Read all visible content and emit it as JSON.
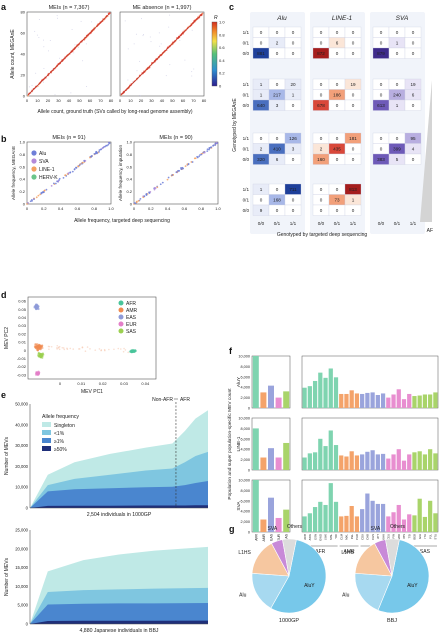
{
  "panel_letters": [
    "a",
    "b",
    "c",
    "d",
    "e",
    "f",
    "g"
  ],
  "chart_data": [
    {
      "panel": "a",
      "type": "scatter",
      "subplots": [
        {
          "title": "MEIs (n = 7,367)",
          "xlim": [
            0,
            80
          ],
          "ylim": [
            0,
            80
          ],
          "xticks": [
            0,
            10,
            20,
            30,
            40,
            50,
            60,
            70,
            80
          ],
          "yticks": [
            0,
            20,
            40,
            60,
            80
          ],
          "trend": [
            [
              1,
              1
            ],
            [
              78,
              78
            ]
          ]
        },
        {
          "title": "ME absence (n = 1,997)",
          "xlim": [
            0,
            80
          ],
          "ylim": [
            0,
            80
          ],
          "xticks": [
            0,
            10,
            20,
            30,
            40,
            50,
            60,
            70,
            80
          ],
          "yticks": [
            0,
            20,
            40,
            60,
            80
          ],
          "trend": [
            [
              1,
              1
            ],
            [
              78,
              78
            ]
          ]
        }
      ],
      "ylabel": "Allele count, MEGAnE",
      "xlabel": "Allele count, ground truth (SVs called by long-read genome assembly)",
      "colorbar": {
        "title": "R",
        "ticks": [
          "1.0",
          "0.8",
          "0.6",
          "0.4",
          "0.2",
          "0"
        ]
      }
    },
    {
      "panel": "b",
      "type": "scatter",
      "subplots": [
        {
          "title": "MEIs (n = 91)",
          "ylabel": "Allele frequency, MEGAnE",
          "xlim": [
            0,
            1
          ],
          "ylim": [
            0,
            1
          ],
          "xticks": [
            "0",
            "0.2",
            "0.4",
            "0.6",
            "0.8",
            "1.0"
          ],
          "yticks": [
            "0",
            "0.2",
            "0.4",
            "0.6",
            "0.8",
            "1.0"
          ]
        },
        {
          "title": "MEIs (n = 90)",
          "ylabel": "Allele frequency, imputation",
          "xlim": [
            0,
            1
          ],
          "ylim": [
            0,
            1
          ],
          "xticks": [
            "0",
            "0.2",
            "0.4",
            "0.6",
            "0.8",
            "1.0"
          ],
          "yticks": [
            "0",
            "0.2",
            "0.4",
            "0.6",
            "0.8",
            "1.0"
          ]
        }
      ],
      "xlabel": "Allele frequency, targeted deep sequencing",
      "legend": [
        {
          "name": "Alu",
          "color": "#6f7fd8"
        },
        {
          "name": "SVA",
          "color": "#b48ad8"
        },
        {
          "name": "LINE-1",
          "color": "#f4a261"
        },
        {
          "name": "HERV-K",
          "color": "#6cc58a"
        }
      ]
    },
    {
      "panel": "c",
      "type": "heatmap",
      "columns": [
        "Alu",
        "LINE-1",
        "SVA"
      ],
      "row_labels": [
        "1/1",
        "0/1",
        "0/0"
      ],
      "col_labels": [
        "0/0",
        "0/1",
        "1/1"
      ],
      "ylabel": "Genotyped by MEGAnE",
      "xlabel": "Genotyped by targeted deep sequencing",
      "side_label": "AF",
      "blocks": [
        [
          [
            [
              0,
              0,
              0
            ],
            [
              0,
              2,
              0
            ],
            [
              881,
              0,
              0
            ]
          ],
          [
            [
              0,
              0,
              0
            ],
            [
              0,
              6,
              0
            ],
            [
              872,
              0,
              0
            ]
          ],
          [
            [
              0,
              0,
              0
            ],
            [
              0,
              1,
              0
            ],
            [
              879,
              0,
              0
            ]
          ]
        ],
        [
          [
            [
              1,
              0,
              20
            ],
            [
              1,
              217,
              1
            ],
            [
              640,
              3,
              0
            ]
          ],
          [
            [
              0,
              0,
              19
            ],
            [
              0,
              186,
              0
            ],
            [
              678,
              0,
              0
            ]
          ],
          [
            [
              0,
              0,
              19
            ],
            [
              0,
              240,
              6
            ],
            [
              613,
              1,
              0
            ]
          ]
        ],
        [
          [
            [
              0,
              0,
              126
            ],
            [
              2,
              410,
              3
            ],
            [
              320,
              6,
              0
            ]
          ],
          [
            [
              0,
              0,
              181
            ],
            [
              2,
              435,
              0
            ],
            [
              160,
              0,
              0
            ]
          ],
          [
            [
              0,
              0,
              95
            ],
            [
              0,
              399,
              4
            ],
            [
              383,
              5,
              0
            ]
          ]
        ],
        [
          [
            [
              1,
              0,
              711
            ],
            [
              0,
              168,
              0
            ],
            [
              9,
              0,
              0
            ]
          ],
          [
            [
              0,
              0,
              813
            ],
            [
              0,
              73,
              1
            ],
            [
              0,
              0,
              0
            ]
          ],
          null
        ]
      ]
    },
    {
      "panel": "d",
      "type": "scatter",
      "xlabel": "MEV PC1",
      "ylabel": "MEV PC2",
      "xlim": [
        -0.015,
        0.045
      ],
      "ylim": [
        -0.035,
        0.065
      ],
      "xticks": [
        "0",
        "0.01",
        "0.02",
        "0.03",
        "0.04"
      ],
      "yticks": [
        "0.06",
        "0.05",
        "0.04",
        "0.03",
        "0.02",
        "0.01",
        "0",
        "-0.01",
        "-0.02",
        "-0.03"
      ],
      "legend": [
        {
          "name": "AFR",
          "color": "#48c49a"
        },
        {
          "name": "AMR",
          "color": "#f08a50"
        },
        {
          "name": "EAS",
          "color": "#8e9ad8"
        },
        {
          "name": "EUR",
          "color": "#e37fc8"
        },
        {
          "name": "SAS",
          "color": "#9bd050"
        }
      ],
      "clusters": [
        {
          "name": "EAS",
          "cx": -0.011,
          "cy": 0.053,
          "sx": 0.0012,
          "sy": 0.004
        },
        {
          "name": "EUR",
          "cx": -0.0105,
          "cy": -0.028,
          "sx": 0.0012,
          "sy": 0.003
        },
        {
          "name": "SAS",
          "cx": -0.009,
          "cy": -0.006,
          "sx": 0.0015,
          "sy": 0.004
        },
        {
          "name": "AMR",
          "cx": -0.01,
          "cy": 0.004,
          "sx": 0.0025,
          "sy": 0.006
        },
        {
          "name": "AFR",
          "cx": 0.034,
          "cy": -0.001,
          "sx": 0.002,
          "sy": 0.0018
        }
      ]
    },
    {
      "panel": "e",
      "type": "area",
      "subplots": [
        {
          "caption": "2,504 individuals in 1000GP",
          "ylim": [
            0,
            50000
          ],
          "yticks": [
            "0",
            "10,000",
            "20,000",
            "30,000",
            "40,000",
            "50,000"
          ],
          "nonafr_label": "Non-AFR",
          "afr_label": "AFR",
          "series": [
            {
              "name": "Singleton",
              "color": "#bfe9e6",
              "x": [
                0,
                0.1,
                0.25,
                0.45,
                0.65,
                0.8,
                0.87,
                0.93,
                1.0
              ],
              "y": [
                0,
                16000,
                22000,
                26000,
                29000,
                31000,
                37000,
                43000,
                47000
              ]
            },
            {
              "name": "<1%",
              "color": "#7fc6e0",
              "x": [
                0,
                0.1,
                0.25,
                0.45,
                0.65,
                0.8,
                0.87,
                0.93,
                1.0
              ],
              "y": [
                0,
                11000,
                14000,
                16000,
                18000,
                19000,
                22000,
                25000,
                27000
              ]
            },
            {
              "name": "≥1%",
              "color": "#4a86cf",
              "x": [
                0,
                0.1,
                0.25,
                0.45,
                0.65,
                0.8,
                0.87,
                0.93,
                1.0
              ],
              "y": [
                0,
                8000,
                9000,
                9500,
                10000,
                10200,
                11000,
                12000,
                13000
              ]
            },
            {
              "name": "≥50%",
              "color": "#1f2f7a",
              "x": [
                0,
                0.1,
                0.25,
                0.45,
                0.65,
                0.8,
                0.87,
                0.93,
                1.0
              ],
              "y": [
                0,
                1000,
                1100,
                1100,
                1200,
                1200,
                1200,
                1300,
                1300
              ]
            }
          ]
        },
        {
          "caption": "4,880 Japanese individuals in BBJ",
          "ylim": [
            0,
            25000
          ],
          "yticks": [
            "0",
            "5,000",
            "10,000",
            "15,000",
            "20,000",
            "25,000"
          ],
          "series": [
            {
              "name": "Singleton",
              "color": "#bfe9e6",
              "x": [
                0,
                0.1,
                0.3,
                0.5,
                0.7,
                1.0
              ],
              "y": [
                0,
                14000,
                17000,
                18500,
                19500,
                20500
              ]
            },
            {
              "name": "<1%",
              "color": "#7fc6e0",
              "x": [
                0,
                0.1,
                0.3,
                0.5,
                0.7,
                1.0
              ],
              "y": [
                0,
                8500,
                9000,
                9200,
                9400,
                9600
              ]
            },
            {
              "name": "≥1%",
              "color": "#4a86cf",
              "x": [
                0,
                0.1,
                0.3,
                0.5,
                0.7,
                1.0
              ],
              "y": [
                0,
                5200,
                5400,
                5500,
                5500,
                5600
              ]
            },
            {
              "name": "≥50%",
              "color": "#1f2f7a",
              "x": [
                0,
                0.1,
                0.3,
                0.5,
                0.7,
                1.0
              ],
              "y": [
                0,
                800,
                850,
                850,
                850,
                900
              ]
            }
          ]
        }
      ],
      "ylabel": "Number of MEVs",
      "legend_title": "Allele frequency",
      "legend": [
        {
          "name": "Singleton",
          "color": "#bfe9e6"
        },
        {
          "name": "<1%",
          "color": "#7fc6e0"
        },
        {
          "name": "≥1%",
          "color": "#4a86cf"
        },
        {
          "name": "≥50%",
          "color": "#1f2f7a"
        }
      ]
    },
    {
      "panel": "f",
      "type": "bar",
      "ylabel": "Population and super population-specific MEV count",
      "ylim": [
        0,
        10000
      ],
      "yticks": [
        "0",
        "2,000",
        "4,000",
        "6,000",
        "8,000",
        "10,000"
      ],
      "row_names": [
        "AluY",
        "LINE-1",
        "SVA"
      ],
      "super_categories": [
        "AFR",
        "AMR",
        "EAS",
        "EUR",
        "SAS"
      ],
      "super_colors": [
        "#7fd4b0",
        "#f4a36a",
        "#9aa4dc",
        "#e88ed0",
        "#a9d46a"
      ],
      "super_values": [
        [
          10000,
          3000,
          4300,
          2000,
          3200
        ],
        [
          8000,
          2400,
          4200,
          2400,
          5200
        ],
        [
          10000,
          2400,
          6600,
          2700,
          4300
        ]
      ],
      "pop_categories": [
        "ACB",
        "ASW",
        "ESN",
        "GWD",
        "LWK",
        "MSL",
        "YRI",
        "CLM",
        "MXL",
        "PEL",
        "PUR",
        "CDX",
        "CHB",
        "CHS",
        "JPT",
        "KHV",
        "CEU",
        "FIN",
        "GBR",
        "IBS",
        "TSI",
        "BEB",
        "GIH",
        "ITU",
        "PJL",
        "STU"
      ],
      "pop_group": [
        0,
        0,
        0,
        0,
        0,
        0,
        0,
        1,
        1,
        1,
        1,
        2,
        2,
        2,
        2,
        2,
        3,
        3,
        3,
        3,
        3,
        4,
        4,
        4,
        4,
        4
      ],
      "pop_values": [
        [
          3900,
          4200,
          5200,
          6800,
          5800,
          7600,
          5900,
          2700,
          2700,
          3400,
          2800,
          2700,
          2900,
          3000,
          2500,
          2800,
          2000,
          2600,
          3600,
          1700,
          2700,
          2300,
          2400,
          2600,
          2600,
          3000
        ],
        [
          2400,
          3200,
          3400,
          6000,
          4600,
          7600,
          4800,
          2800,
          2600,
          3600,
          2800,
          3000,
          3500,
          3800,
          3000,
          3100,
          2200,
          3000,
          4000,
          1800,
          3000,
          3400,
          3600,
          3000,
          4000,
          3200
        ],
        [
          3000,
          3600,
          4800,
          5800,
          5200,
          9400,
          5800,
          3000,
          3100,
          5000,
          3000,
          4400,
          7400,
          6000,
          5400,
          5400,
          3000,
          3800,
          5200,
          2400,
          3400,
          3200,
          6400,
          2900,
          6000,
          3600
        ]
      ]
    },
    {
      "panel": "g",
      "type": "pie",
      "subplots": [
        {
          "caption": "1000GP",
          "slices": [
            {
              "name": "AluY",
              "value": 0.55,
              "color": "#77c8ea"
            },
            {
              "name": "Alu",
              "value": 0.18,
              "color": "#a7d9f0"
            },
            {
              "name": "L1HS",
              "value": 0.16,
              "color": "#f6c7a0"
            },
            {
              "name": "SVA",
              "value": 0.05,
              "color": "#c88ad8"
            },
            {
              "name": "Others",
              "value": 0.06,
              "color": "#dcdcdc"
            }
          ]
        },
        {
          "caption": "BBJ",
          "slices": [
            {
              "name": "AluY",
              "value": 0.53,
              "color": "#77c8ea"
            },
            {
              "name": "Alu",
              "value": 0.2,
              "color": "#a7d9f0"
            },
            {
              "name": "L1HS",
              "value": 0.16,
              "color": "#f6c7a0"
            },
            {
              "name": "SVA",
              "value": 0.05,
              "color": "#c88ad8"
            },
            {
              "name": "Others",
              "value": 0.06,
              "color": "#dcdcdc"
            }
          ]
        }
      ]
    }
  ]
}
